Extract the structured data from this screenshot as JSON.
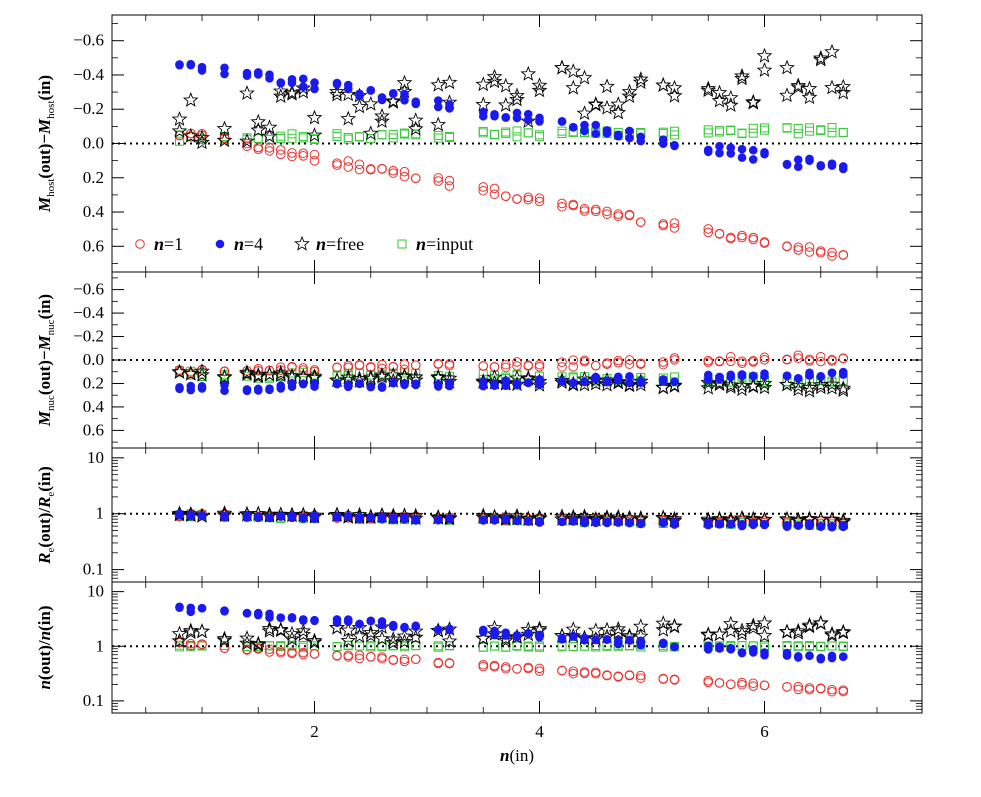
{
  "chart_data": [
    {
      "id": "host",
      "type": "scatter",
      "ylabel": "M_host(out)-M_host(in)",
      "ylabel_parts": {
        "main1": "M",
        "sub1": "host",
        "mid": "(out)−",
        "main2": "M",
        "sub2": "host",
        "end": "(in)"
      },
      "xlim": [
        0.2,
        7.4
      ],
      "ylim": [
        0.75,
        -0.75
      ],
      "yscale": "linear",
      "yticks": [
        -0.6,
        -0.4,
        -0.2,
        0.0,
        0.2,
        0.4,
        0.6
      ],
      "ytick_labels": [
        "−0.6",
        "−0.4",
        "−0.2",
        "0.0",
        "0.2",
        "0.4",
        "0.6"
      ],
      "reference_line": 0.0,
      "legend": {
        "placement": "lower-left",
        "entries": [
          {
            "symbol": "open-circle",
            "bold": "n",
            "rest": "=1"
          },
          {
            "symbol": "filled-circle",
            "bold": "n",
            "rest": "=4"
          },
          {
            "symbol": "star",
            "bold": "n",
            "rest": "=free"
          },
          {
            "symbol": "open-square",
            "bold": "n",
            "rest": "=input"
          }
        ]
      },
      "series": {
        "n1": {
          "x0": 0.9,
          "y0": -0.05,
          "x1": 6.7,
          "y1": 0.66,
          "scatter": 0.02
        },
        "n4": {
          "x0": 0.8,
          "y0": -0.47,
          "x1": 6.7,
          "y1": 0.15,
          "scatter": 0.03
        },
        "free": {
          "x0": 0.8,
          "y0": -0.12,
          "x1": 6.7,
          "y1": -0.42,
          "scatter": 0.15
        },
        "input": {
          "x0": 0.8,
          "y0": -0.03,
          "x1": 6.7,
          "y1": -0.08,
          "scatter": 0.02
        }
      }
    },
    {
      "id": "nuc",
      "type": "scatter",
      "ylabel": "M_nuc(out)-M_nuc(in)",
      "ylabel_parts": {
        "main1": "M",
        "sub1": "nuc",
        "mid": "(out)−",
        "main2": "M",
        "sub2": "nuc",
        "end": "(in)"
      },
      "xlim": [
        0.2,
        7.4
      ],
      "ylim": [
        0.75,
        -0.75
      ],
      "yscale": "linear",
      "yticks": [
        -0.6,
        -0.4,
        -0.2,
        0.0,
        0.2,
        0.4,
        0.6
      ],
      "ytick_labels": [
        "−0.6",
        "−0.4",
        "−0.2",
        "0.0",
        "0.2",
        "0.4",
        "0.6"
      ],
      "reference_line": 0.0,
      "series": {
        "n1": {
          "x0": 0.8,
          "y0": 0.1,
          "x1": 6.7,
          "y1": -0.02,
          "scatter": 0.03
        },
        "n4": {
          "x0": 0.8,
          "y0": 0.25,
          "x1": 6.7,
          "y1": 0.13,
          "scatter": 0.03
        },
        "free": {
          "x0": 0.8,
          "y0": 0.12,
          "x1": 6.7,
          "y1": 0.24,
          "scatter": 0.03
        },
        "input": {
          "x0": 0.8,
          "y0": 0.12,
          "x1": 6.7,
          "y1": 0.18,
          "scatter": 0.03
        }
      }
    },
    {
      "id": "re",
      "type": "scatter",
      "ylabel": "R_e(out)/R_e(in)",
      "ylabel_parts": {
        "main1": "R",
        "sub1": "e",
        "mid": "(out)/",
        "main2": "R",
        "sub2": "e",
        "end": "(in)"
      },
      "xlim": [
        0.2,
        7.4
      ],
      "ylim": [
        0.06,
        15
      ],
      "yscale": "log",
      "yticks": [
        0.1,
        1,
        10
      ],
      "ytick_labels": [
        "0.1",
        "1",
        "10"
      ],
      "reference_line": 1,
      "series": {
        "n1": {
          "x0": 0.8,
          "y0": 0.95,
          "x1": 6.7,
          "y1": 0.7,
          "scatter": 0.03
        },
        "n4": {
          "x0": 0.8,
          "y0": 0.95,
          "x1": 6.7,
          "y1": 0.6,
          "scatter": 0.03
        },
        "free": {
          "x0": 0.8,
          "y0": 0.97,
          "x1": 6.7,
          "y1": 0.75,
          "scatter": 0.03
        },
        "input": {
          "x0": 0.8,
          "y0": 0.93,
          "x1": 6.7,
          "y1": 0.65,
          "scatter": 0.03
        }
      }
    },
    {
      "id": "n",
      "type": "scatter",
      "ylabel": "n(out)/n(in)",
      "ylabel_parts": {
        "main1": "n",
        "sub1": "",
        "mid": "(out)/",
        "main2": "n",
        "sub2": "",
        "end": "(in)"
      },
      "xlabel": "n(in)",
      "xlabel_parts": {
        "bold": "n",
        "rest": "(in)"
      },
      "xlim": [
        0.2,
        7.4
      ],
      "xticks": [
        2,
        4,
        6
      ],
      "xtick_labels": [
        "2",
        "4",
        "6"
      ],
      "ylim": [
        0.06,
        15
      ],
      "yscale": "log",
      "yticks": [
        0.1,
        1,
        10
      ],
      "ytick_labels": [
        "0.1",
        "1",
        "10"
      ],
      "reference_line": 1,
      "series": {
        "n1": {
          "x0": 0.8,
          "y0": 1.1,
          "x1": 6.7,
          "y1": 0.15,
          "scatter": 0.03
        },
        "n4": {
          "x0": 0.8,
          "y0": 4.8,
          "x1": 6.7,
          "y1": 0.6,
          "scatter": 0.05
        },
        "free": {
          "x0": 0.8,
          "y0": 1.4,
          "x1": 6.7,
          "y1": 2.2,
          "scatter": 0.15
        },
        "input": {
          "x0": 0.8,
          "y0": 1.0,
          "x1": 6.7,
          "y1": 1.0,
          "scatter": 0.02
        }
      }
    }
  ],
  "x_values": [
    0.8,
    0.9,
    1.0,
    1.2,
    1.4,
    1.5,
    1.6,
    1.7,
    1.8,
    1.9,
    2.0,
    2.2,
    2.3,
    2.4,
    2.5,
    2.6,
    2.7,
    2.8,
    2.9,
    3.1,
    3.2,
    3.5,
    3.6,
    3.7,
    3.8,
    3.9,
    4.0,
    4.2,
    4.3,
    4.4,
    4.5,
    4.6,
    4.7,
    4.8,
    4.9,
    5.1,
    5.2,
    5.5,
    5.6,
    5.7,
    5.8,
    5.9,
    6.0,
    6.2,
    6.3,
    6.4,
    6.5,
    6.6,
    6.7
  ],
  "colors": {
    "n1": "#e8322f",
    "n4": "#1a1aef",
    "free": "#000000",
    "input": "#39c83a",
    "reference": "#000000"
  }
}
